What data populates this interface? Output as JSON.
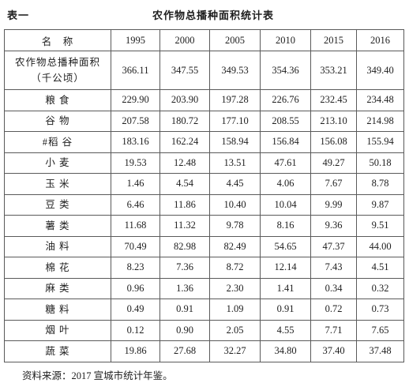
{
  "header": {
    "label": "表一",
    "title": "农作物总播种面积统计表"
  },
  "table": {
    "columns": [
      "名　称",
      "1995",
      "2000",
      "2005",
      "2010",
      "2015",
      "2016"
    ],
    "rows": [
      {
        "name": "农作物总播种面积",
        "unit": "（千公顷）",
        "values": [
          "366.11",
          "347.55",
          "349.53",
          "354.36",
          "353.21",
          "349.40"
        ]
      },
      {
        "name": "粮 食",
        "values": [
          "229.90",
          "203.90",
          "197.28",
          "226.76",
          "232.45",
          "234.48"
        ]
      },
      {
        "name": "谷 物",
        "values": [
          "207.58",
          "180.72",
          "177.10",
          "208.55",
          "213.10",
          "214.98"
        ]
      },
      {
        "name": "#稻 谷",
        "values": [
          "183.16",
          "162.24",
          "158.94",
          "156.84",
          "156.08",
          "155.94"
        ]
      },
      {
        "name": "小 麦",
        "values": [
          "19.53",
          "12.48",
          "13.51",
          "47.61",
          "49.27",
          "50.18"
        ]
      },
      {
        "name": "玉 米",
        "values": [
          "1.46",
          "4.54",
          "4.45",
          "4.06",
          "7.67",
          "8.78"
        ]
      },
      {
        "name": "豆 类",
        "values": [
          "6.46",
          "11.86",
          "10.40",
          "10.04",
          "9.99",
          "9.87"
        ]
      },
      {
        "name": "薯 类",
        "values": [
          "11.68",
          "11.32",
          "9.78",
          "8.16",
          "9.36",
          "9.51"
        ]
      },
      {
        "name": "油 料",
        "values": [
          "70.49",
          "82.98",
          "82.49",
          "54.65",
          "47.37",
          "44.00"
        ]
      },
      {
        "name": "棉 花",
        "values": [
          "8.23",
          "7.36",
          "8.72",
          "12.14",
          "7.43",
          "4.51"
        ]
      },
      {
        "name": "麻 类",
        "values": [
          "0.96",
          "1.36",
          "2.30",
          "1.41",
          "0.34",
          "0.32"
        ]
      },
      {
        "name": "糖 料",
        "values": [
          "0.49",
          "0.91",
          "1.09",
          "0.91",
          "0.72",
          "0.73"
        ]
      },
      {
        "name": "烟 叶",
        "values": [
          "0.12",
          "0.90",
          "2.05",
          "4.55",
          "7.71",
          "7.65"
        ]
      },
      {
        "name": "蔬 菜",
        "values": [
          "19.86",
          "27.68",
          "32.27",
          "34.80",
          "37.40",
          "37.48"
        ]
      }
    ]
  },
  "footer": {
    "source": "资料来源：2017 宣城市统计年鉴。"
  }
}
